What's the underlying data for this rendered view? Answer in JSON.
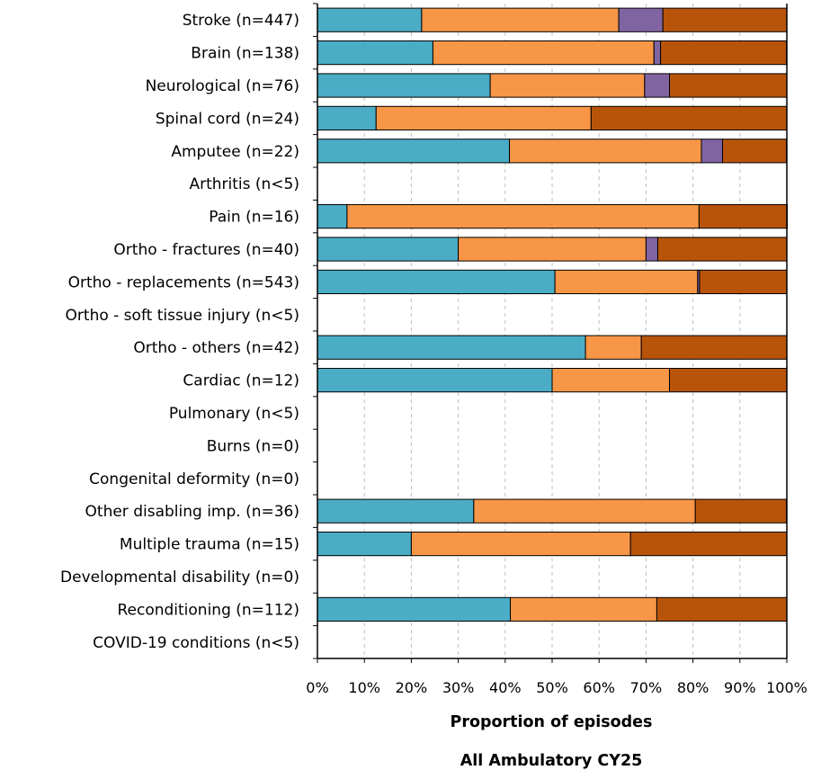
{
  "chart_data": {
    "type": "bar",
    "orientation": "horizontal",
    "stacked": true,
    "normalized_100": true,
    "xlabel": "Proportion of episodes",
    "subtitle": "All Ambulatory CY25",
    "xlim": [
      0,
      100
    ],
    "xticks": [
      "0%",
      "10%",
      "20%",
      "30%",
      "40%",
      "50%",
      "60%",
      "70%",
      "80%",
      "90%",
      "100%"
    ],
    "grid": "vertical dashed",
    "legend": "none",
    "categories": [
      "Stroke (n=447)",
      "Brain (n=138)",
      "Neurological (n=76)",
      "Spinal cord (n=24)",
      "Amputee (n=22)",
      "Arthritis (n<5)",
      "Pain (n=16)",
      "Ortho - fractures (n=40)",
      "Ortho - replacements (n=543)",
      "Ortho - soft tissue injury (n<5)",
      "Ortho - others (n=42)",
      "Cardiac (n=12)",
      "Pulmonary (n<5)",
      "Burns (n=0)",
      "Congenital deformity (n=0)",
      "Other disabling imp. (n=36)",
      "Multiple trauma (n=15)",
      "Developmental disability (n=0)",
      "Reconditioning (n=112)",
      "COVID-19 conditions (n<5)"
    ],
    "series": [
      {
        "color": "#4BACC6",
        "values": [
          22.2,
          24.6,
          36.8,
          12.5,
          40.9,
          null,
          6.3,
          30.0,
          50.6,
          null,
          57.1,
          50.0,
          null,
          null,
          null,
          33.3,
          20.0,
          null,
          41.1,
          null
        ]
      },
      {
        "color": "#F79646",
        "values": [
          42.0,
          47.1,
          32.9,
          45.8,
          40.9,
          null,
          75.0,
          40.0,
          30.4,
          null,
          11.9,
          25.0,
          null,
          null,
          null,
          47.2,
          46.7,
          null,
          31.2,
          null
        ]
      },
      {
        "color": "#8064A2",
        "values": [
          9.4,
          1.4,
          5.3,
          0.0,
          4.5,
          null,
          0.0,
          2.5,
          0.4,
          null,
          0.0,
          0.0,
          null,
          null,
          null,
          0.0,
          0.0,
          null,
          0.0,
          null
        ]
      },
      {
        "color": "#B8540A",
        "values": [
          26.4,
          26.8,
          25.0,
          41.7,
          13.6,
          null,
          18.8,
          27.5,
          18.6,
          null,
          31.0,
          25.0,
          null,
          null,
          null,
          19.4,
          33.3,
          null,
          27.7,
          null
        ]
      }
    ]
  }
}
